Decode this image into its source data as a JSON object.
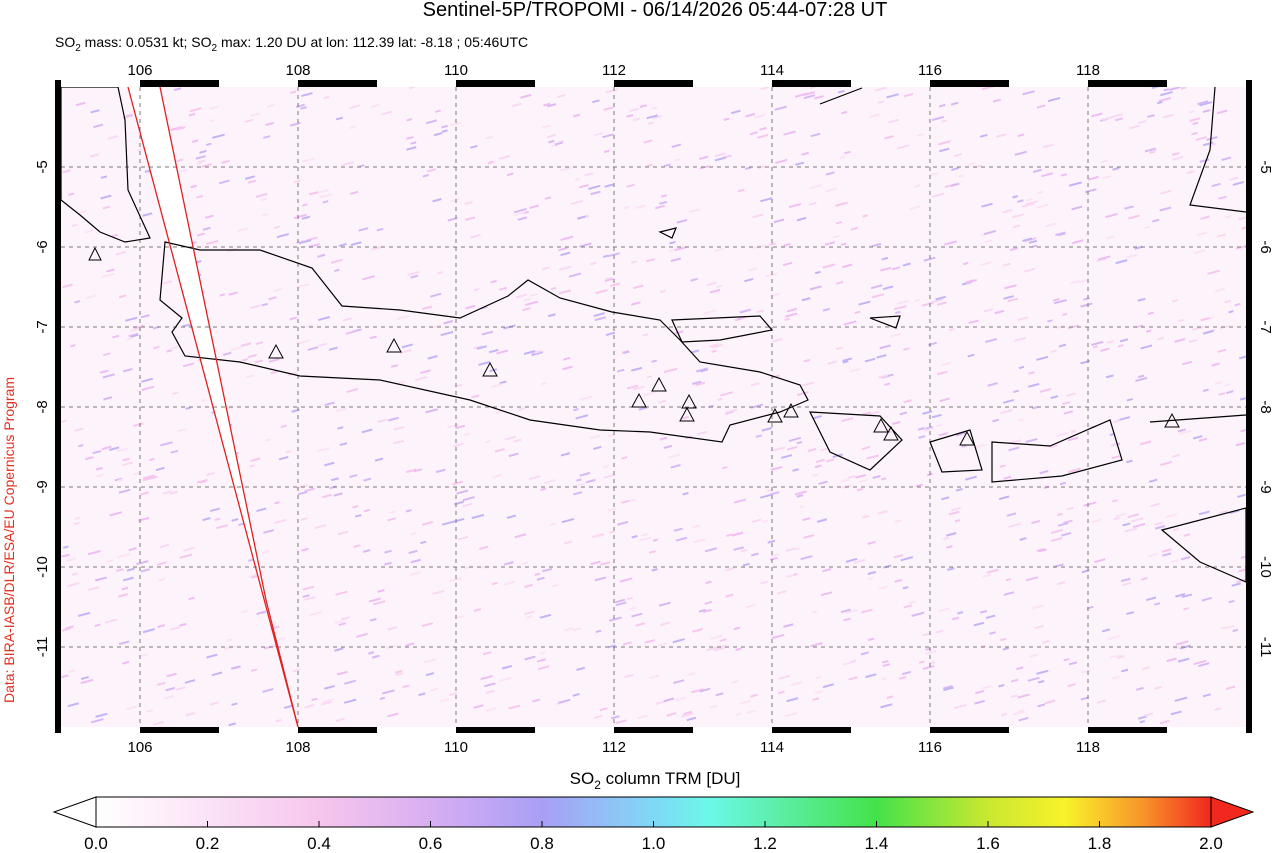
{
  "title": "Sentinel-5P/TROPOMI - 06/14/2026 05:44-07:28 UT",
  "info": [
    "SO",
    "2",
    " mass: 0.0531 kt; SO",
    "2",
    " max: 1.20 DU at lon: 112.39 lat: -8.18 ; 05:46UTC"
  ],
  "credit": "Data: BIRA-IASB/DLR/ESA/EU Copernicus Program",
  "map": {
    "xlim": [
      105,
      120
    ],
    "ylim": [
      -12,
      -4
    ],
    "xticks": [
      106,
      108,
      110,
      112,
      114,
      116,
      118
    ],
    "yticks": [
      -5,
      -6,
      -7,
      -8,
      -9,
      -10,
      -11
    ]
  },
  "colorbar": {
    "label": [
      "SO",
      "2",
      " column TRM [DU]"
    ],
    "lim": [
      0,
      2
    ],
    "ticks": [
      {
        "value": 0,
        "label": "0.0"
      },
      {
        "value": 0.2,
        "label": "0.2"
      },
      {
        "value": 0.4,
        "label": "0.4"
      },
      {
        "value": 0.6,
        "label": "0.6"
      },
      {
        "value": 0.8,
        "label": "0.8"
      },
      {
        "value": 1,
        "label": "1.0"
      },
      {
        "value": 1.2,
        "label": "1.2"
      },
      {
        "value": 1.4,
        "label": "1.4"
      },
      {
        "value": 1.6,
        "label": "1.6"
      },
      {
        "value": 1.8,
        "label": "1.8"
      },
      {
        "value": 2,
        "label": "2.0"
      }
    ]
  }
}
